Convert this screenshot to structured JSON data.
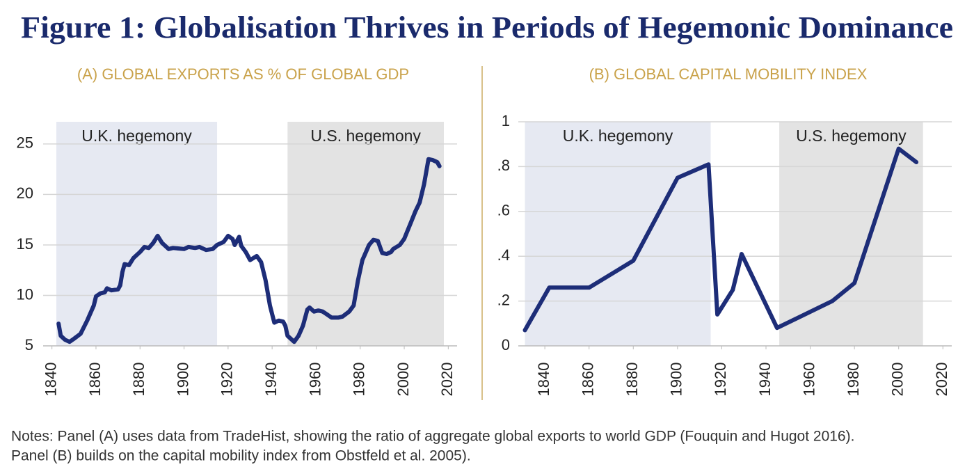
{
  "title": "Figure 1: Globalisation Thrives in Periods of Hegemonic Dominance",
  "notes": [
    "Notes: Panel (A) uses data from TradeHist, showing the ratio of aggregate global exports to world GDP (Fouquin and Hugot 2016).",
    "Panel (B) builds on the capital mobility index from Obstfeld et al. 2005)."
  ],
  "chart_data": [
    {
      "type": "line",
      "title": "(A) GLOBAL EXPORTS AS % OF GLOBAL GDP",
      "color": "#1d2d78",
      "x": [
        1843,
        1844,
        1846,
        1848,
        1850,
        1853,
        1856,
        1859,
        1860,
        1862,
        1864,
        1865,
        1867,
        1870,
        1871,
        1872,
        1873,
        1875,
        1877,
        1880,
        1882,
        1884,
        1886,
        1888,
        1890,
        1893,
        1895,
        1900,
        1902,
        1905,
        1907,
        1910,
        1913,
        1915,
        1918,
        1920,
        1922,
        1923,
        1925,
        1926,
        1928,
        1930,
        1933,
        1935,
        1937,
        1939,
        1941,
        1943,
        1945,
        1946,
        1947,
        1950,
        1952,
        1954,
        1956,
        1957,
        1959,
        1961,
        1963,
        1965,
        1967,
        1970,
        1972,
        1975,
        1977,
        1979,
        1981,
        1982,
        1984,
        1986,
        1988,
        1990,
        1992,
        1994,
        1995,
        1998,
        2000,
        2003,
        2005,
        2007,
        2009,
        2011,
        2013,
        2015,
        2016
      ],
      "values": [
        7.2,
        6.0,
        5.6,
        5.4,
        5.7,
        6.2,
        7.5,
        9.0,
        9.9,
        10.2,
        10.3,
        10.7,
        10.5,
        10.6,
        11.0,
        12.3,
        13.1,
        13.0,
        13.7,
        14.3,
        14.8,
        14.7,
        15.2,
        15.9,
        15.2,
        14.6,
        14.7,
        14.6,
        14.8,
        14.7,
        14.8,
        14.5,
        14.6,
        15.0,
        15.3,
        15.9,
        15.6,
        15.0,
        15.8,
        14.9,
        14.3,
        13.5,
        13.9,
        13.3,
        11.5,
        9.0,
        7.3,
        7.5,
        7.4,
        7.0,
        6.0,
        5.4,
        6.0,
        7.0,
        8.6,
        8.8,
        8.4,
        8.5,
        8.4,
        8.1,
        7.8,
        7.8,
        7.9,
        8.4,
        9.0,
        11.5,
        13.5,
        14.0,
        15.0,
        15.5,
        15.4,
        14.2,
        14.1,
        14.3,
        14.6,
        15.0,
        15.6,
        17.2,
        18.3,
        19.2,
        21.0,
        23.5,
        23.4,
        23.2,
        22.8
      ],
      "xlim": [
        1836,
        2024
      ],
      "xticks": [
        1840,
        1860,
        1880,
        1900,
        1920,
        1940,
        1960,
        1980,
        2000,
        2020
      ],
      "ylim": [
        5,
        27.2
      ],
      "yticks": [
        5,
        10,
        15,
        20,
        25
      ],
      "grid": true,
      "shaded_regions": [
        {
          "label": "U.K. hegemony",
          "start": 1842,
          "end": 1915,
          "color": "#e6e9f2"
        },
        {
          "label": "U.S. hegemony",
          "start": 1947,
          "end": 2018,
          "color": "#e3e3e3"
        }
      ]
    },
    {
      "type": "line",
      "title": "(B) GLOBAL CAPITAL MOBILITY INDEX",
      "color": "#1d2d78",
      "x": [
        1831,
        1842,
        1860,
        1880,
        1900,
        1914,
        1918,
        1925,
        1929,
        1945,
        1970,
        1980,
        2000,
        2008
      ],
      "values": [
        0.07,
        0.26,
        0.26,
        0.38,
        0.75,
        0.81,
        0.14,
        0.25,
        0.41,
        0.08,
        0.2,
        0.28,
        0.88,
        0.82
      ],
      "xlim": [
        1828,
        2024
      ],
      "xticks": [
        1840,
        1860,
        1880,
        1900,
        1920,
        1940,
        1960,
        1980,
        2000,
        2020
      ],
      "ylim": [
        0,
        1
      ],
      "yticks": [
        0,
        {
          "value": 0.2,
          "label": ".2"
        },
        {
          "value": 0.4,
          "label": ".4"
        },
        {
          "value": 0.6,
          "label": ".6"
        },
        {
          "value": 0.8,
          "label": ".8"
        },
        1
      ],
      "grid": true,
      "shaded_regions": [
        {
          "label": "U.K. hegemony",
          "start": 1831,
          "end": 1915,
          "color": "#e6e9f2"
        },
        {
          "label": "U.S. hegemony",
          "start": 1946,
          "end": 2011,
          "color": "#e3e3e3"
        }
      ]
    }
  ]
}
